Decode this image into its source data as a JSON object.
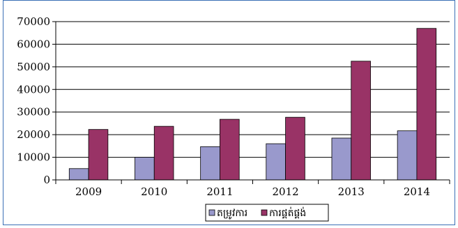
{
  "chart_data": {
    "type": "bar",
    "categories": [
      "2009",
      "2010",
      "2011",
      "2012",
      "2013",
      "2014"
    ],
    "series": [
      {
        "name": "តម្រូវការ",
        "color": "#9999cc",
        "values": [
          5000,
          10000,
          14700,
          16000,
          18500,
          21700
        ]
      },
      {
        "name": "ការផ្គត់ផ្គង់",
        "color": "#993366",
        "values": [
          22300,
          23700,
          26800,
          27700,
          52500,
          67000
        ]
      }
    ],
    "ylim": [
      0,
      70000
    ],
    "yticks": [
      "0",
      "10000",
      "20000",
      "30000",
      "40000",
      "50000",
      "60000",
      "70000"
    ],
    "grid": true,
    "legend": "bottom"
  }
}
